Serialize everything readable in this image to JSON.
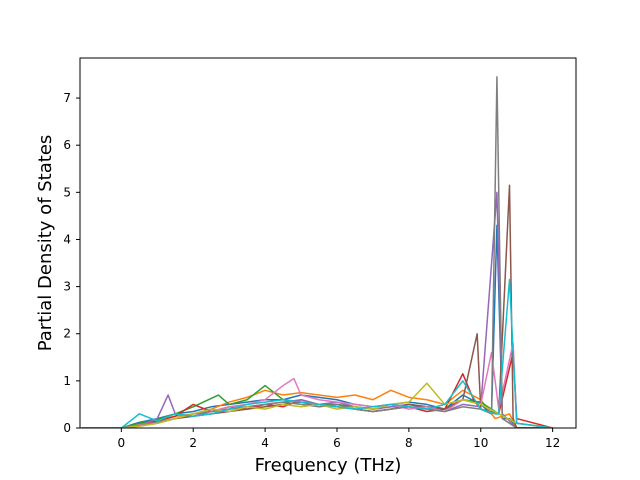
{
  "chart_data": {
    "type": "line",
    "title": "",
    "xlabel": "Frequency (THz)",
    "ylabel": "Partial Density of States",
    "xlim": [
      -1.15,
      12.65
    ],
    "ylim": [
      0,
      7.85
    ],
    "xticks": [
      0,
      2,
      4,
      6,
      8,
      10,
      12
    ],
    "yticks": [
      0,
      1,
      2,
      3,
      4,
      5,
      6,
      7
    ],
    "xtick_labels": [
      "0",
      "2",
      "4",
      "6",
      "8",
      "10",
      "12"
    ],
    "ytick_labels": [
      "0",
      "1",
      "2",
      "3",
      "4",
      "5",
      "6",
      "7"
    ],
    "grid": false,
    "legend": "none",
    "series_count_note_hidden": true,
    "colors": [
      "#1f77b4",
      "#ff7f0e",
      "#2ca02c",
      "#d62728",
      "#9467bd",
      "#8c564b",
      "#e377c2",
      "#7f7f7f",
      "#bcbd22",
      "#17becf"
    ],
    "series": [
      {
        "x": [
          -1.1,
          0.0,
          0.5,
          1.0,
          1.5,
          2.0,
          2.5,
          3.0,
          3.5,
          4.0,
          4.5,
          5.0,
          5.5,
          6.0,
          6.5,
          7.0,
          7.5,
          8.0,
          8.5,
          9.0,
          9.5,
          10.0,
          10.3,
          10.45,
          10.6,
          10.8,
          11.0,
          12.0
        ],
        "y": [
          0,
          0,
          0.12,
          0.2,
          0.3,
          0.35,
          0.45,
          0.5,
          0.55,
          0.6,
          0.6,
          0.7,
          0.65,
          0.6,
          0.5,
          0.45,
          0.5,
          0.55,
          0.5,
          0.4,
          0.7,
          0.5,
          0.3,
          4.3,
          0.2,
          0.2,
          0,
          0
        ]
      },
      {
        "x": [
          -1.1,
          0.0,
          0.5,
          1.0,
          1.5,
          2.0,
          2.5,
          3.0,
          3.5,
          4.0,
          4.5,
          5.0,
          5.5,
          6.0,
          6.5,
          7.0,
          7.5,
          8.0,
          8.5,
          9.0,
          9.5,
          10.0,
          10.4,
          10.8,
          11.0,
          12.0
        ],
        "y": [
          0,
          0,
          0.08,
          0.15,
          0.25,
          0.3,
          0.4,
          0.55,
          0.65,
          0.8,
          0.7,
          0.75,
          0.7,
          0.65,
          0.7,
          0.6,
          0.8,
          0.65,
          0.6,
          0.5,
          0.8,
          0.6,
          0.2,
          0.3,
          0,
          0
        ]
      },
      {
        "x": [
          -1.1,
          0.0,
          0.5,
          1.0,
          1.5,
          2.0,
          2.7,
          3.0,
          3.5,
          4.0,
          4.5,
          5.0,
          5.5,
          6.0,
          6.5,
          7.0,
          7.5,
          8.0,
          8.5,
          9.0,
          9.5,
          10.0,
          10.5,
          11.0,
          12.0
        ],
        "y": [
          0,
          0,
          0.1,
          0.18,
          0.3,
          0.45,
          0.7,
          0.5,
          0.6,
          0.9,
          0.6,
          0.55,
          0.5,
          0.5,
          0.45,
          0.4,
          0.45,
          0.5,
          0.45,
          0.4,
          0.6,
          0.55,
          0.3,
          0.1,
          0
        ]
      },
      {
        "x": [
          -1.1,
          0.0,
          0.5,
          1.0,
          1.5,
          2.0,
          2.5,
          3.0,
          3.5,
          4.0,
          4.5,
          5.0,
          5.5,
          6.0,
          6.5,
          7.0,
          7.5,
          8.0,
          8.5,
          9.0,
          9.5,
          9.8,
          10.0,
          10.5,
          10.9,
          11.0,
          12.0
        ],
        "y": [
          0,
          0,
          0.05,
          0.15,
          0.25,
          0.5,
          0.35,
          0.45,
          0.4,
          0.5,
          0.45,
          0.6,
          0.5,
          0.45,
          0.4,
          0.35,
          0.4,
          0.45,
          0.35,
          0.4,
          1.15,
          0.6,
          0.4,
          0.3,
          1.6,
          0.2,
          0
        ]
      },
      {
        "x": [
          -1.1,
          0.0,
          0.5,
          1.0,
          1.3,
          1.5,
          2.0,
          2.5,
          3.0,
          3.5,
          4.0,
          4.5,
          5.0,
          5.5,
          6.0,
          6.5,
          7.0,
          7.5,
          8.0,
          8.5,
          9.0,
          9.5,
          10.0,
          10.45,
          10.6,
          11.0,
          12.0
        ],
        "y": [
          0,
          0,
          0.05,
          0.2,
          0.7,
          0.3,
          0.25,
          0.35,
          0.4,
          0.45,
          0.5,
          0.55,
          0.6,
          0.5,
          0.55,
          0.45,
          0.4,
          0.45,
          0.5,
          0.4,
          0.35,
          0.5,
          0.45,
          5.0,
          0.3,
          0,
          0
        ]
      },
      {
        "x": [
          -1.1,
          0.0,
          0.5,
          1.0,
          1.5,
          2.0,
          2.5,
          3.0,
          3.5,
          4.0,
          4.5,
          5.0,
          5.5,
          6.0,
          6.5,
          7.0,
          7.5,
          8.0,
          8.5,
          9.0,
          9.5,
          9.9,
          10.0,
          10.5,
          10.8,
          10.9,
          11.0,
          12.0
        ],
        "y": [
          0,
          0,
          0.04,
          0.1,
          0.2,
          0.25,
          0.3,
          0.35,
          0.4,
          0.45,
          0.5,
          0.55,
          0.45,
          0.5,
          0.4,
          0.35,
          0.4,
          0.5,
          0.45,
          0.4,
          0.6,
          2.0,
          0.4,
          0.3,
          5.15,
          0.2,
          0,
          0
        ]
      },
      {
        "x": [
          -1.1,
          0.0,
          0.5,
          1.0,
          1.5,
          2.0,
          2.5,
          3.0,
          3.5,
          4.0,
          4.5,
          4.8,
          5.0,
          5.5,
          6.0,
          6.5,
          7.0,
          7.5,
          8.0,
          8.5,
          9.0,
          9.5,
          10.0,
          10.3,
          10.5,
          10.9,
          11.0,
          12.0
        ],
        "y": [
          0,
          0,
          0.06,
          0.12,
          0.2,
          0.3,
          0.35,
          0.45,
          0.5,
          0.6,
          0.9,
          1.05,
          0.7,
          0.6,
          0.55,
          0.5,
          0.45,
          0.5,
          0.4,
          0.45,
          0.35,
          0.6,
          0.5,
          1.6,
          0.4,
          1.8,
          0.1,
          0
        ]
      },
      {
        "x": [
          -1.1,
          0.0,
          0.5,
          1.0,
          1.5,
          2.0,
          2.5,
          3.0,
          3.5,
          4.0,
          4.5,
          5.0,
          5.5,
          6.0,
          6.5,
          7.0,
          7.5,
          8.0,
          8.5,
          9.0,
          9.5,
          10.0,
          10.3,
          10.45,
          10.6,
          11.0,
          12.0
        ],
        "y": [
          0,
          0,
          0.05,
          0.12,
          0.2,
          0.3,
          0.35,
          0.4,
          0.45,
          0.5,
          0.55,
          0.5,
          0.45,
          0.5,
          0.4,
          0.35,
          0.4,
          0.45,
          0.4,
          0.35,
          0.45,
          0.4,
          0.3,
          7.45,
          0.2,
          0,
          0
        ]
      },
      {
        "x": [
          -1.1,
          0.0,
          0.5,
          1.0,
          1.5,
          2.0,
          2.5,
          3.0,
          3.5,
          4.0,
          4.5,
          5.0,
          5.5,
          6.0,
          6.5,
          7.0,
          7.5,
          8.0,
          8.5,
          9.0,
          9.5,
          10.0,
          10.5,
          11.0,
          12.0
        ],
        "y": [
          0,
          0,
          0.04,
          0.1,
          0.2,
          0.3,
          0.4,
          0.35,
          0.45,
          0.4,
          0.5,
          0.45,
          0.5,
          0.4,
          0.45,
          0.4,
          0.5,
          0.55,
          0.95,
          0.5,
          0.6,
          0.5,
          0.3,
          0.1,
          0
        ]
      },
      {
        "x": [
          -1.1,
          0.0,
          0.5,
          1.0,
          1.5,
          2.0,
          2.5,
          3.0,
          3.5,
          4.0,
          4.5,
          5.0,
          5.5,
          6.0,
          6.5,
          7.0,
          7.5,
          8.0,
          8.5,
          9.0,
          9.5,
          10.0,
          10.4,
          10.5,
          10.8,
          11.0,
          12.0
        ],
        "y": [
          0,
          0,
          0.3,
          0.15,
          0.3,
          0.25,
          0.3,
          0.4,
          0.5,
          0.55,
          0.6,
          0.55,
          0.5,
          0.45,
          0.4,
          0.45,
          0.5,
          0.45,
          0.4,
          0.5,
          1.0,
          0.4,
          0.3,
          0.3,
          3.15,
          0.1,
          0
        ]
      }
    ]
  }
}
